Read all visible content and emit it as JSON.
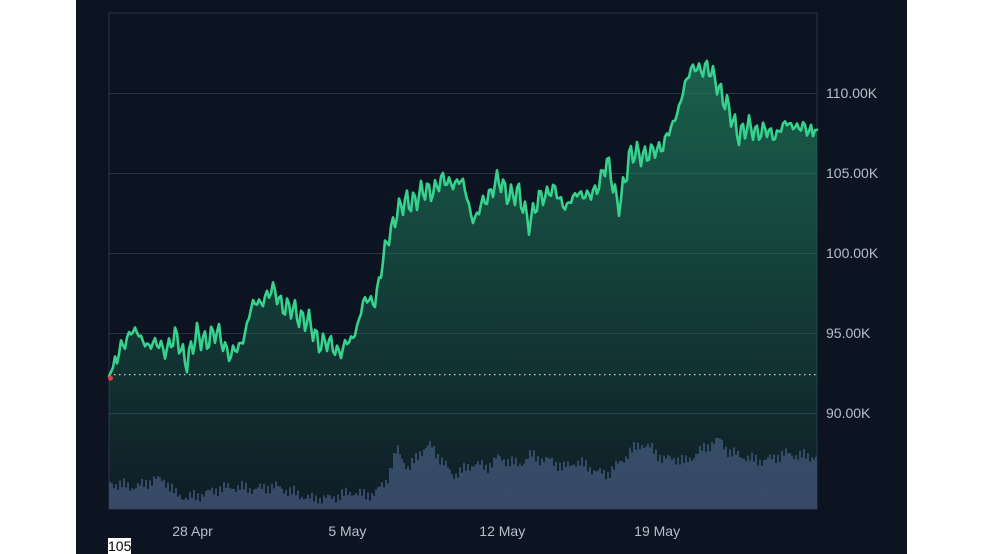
{
  "footer_note": "105",
  "colors": {
    "background": "#0d1421",
    "grid": "#2a3346",
    "price_line": "#36d28e",
    "price_fill_top": "#1e7a5a",
    "volume_fill": "#3a4468",
    "start_marker": "#ea3943",
    "reference_line": "#c7ccd6",
    "tick_label": "#b8bfcc"
  },
  "chart_data": {
    "type": "area",
    "title": "",
    "xlabel": "",
    "ylabel": "",
    "x_ticks": [
      "28 Apr",
      "5 May",
      "12 May",
      "19 May"
    ],
    "y_ticks": [
      "90.00K",
      "95.00K",
      "100.00K",
      "105.00K",
      "110.00K"
    ],
    "y_tick_values": [
      90000,
      95000,
      100000,
      105000,
      110000
    ],
    "ylim": [
      84000,
      115000
    ],
    "xlim": [
      "2025-04-24T00:00",
      "2025-05-26T00:00"
    ],
    "grid": true,
    "reference_line": 92400,
    "series": [
      {
        "type": "area",
        "x": [
          "2025-04-24T00:00",
          "2025-04-24T12:00",
          "2025-04-25T00:00",
          "2025-04-25T12:00",
          "2025-04-26T00:00",
          "2025-04-26T12:00",
          "2025-04-27T00:00",
          "2025-04-27T12:00",
          "2025-04-28T00:00",
          "2025-04-28T12:00",
          "2025-04-29T00:00",
          "2025-04-29T12:00",
          "2025-04-30T00:00",
          "2025-04-30T12:00",
          "2025-05-01T00:00",
          "2025-05-01T12:00",
          "2025-05-02T00:00",
          "2025-05-02T12:00",
          "2025-05-03T00:00",
          "2025-05-03T12:00",
          "2025-05-04T00:00",
          "2025-05-04T12:00",
          "2025-05-05T00:00",
          "2025-05-05T12:00",
          "2025-05-06T00:00",
          "2025-05-06T12:00",
          "2025-05-07T00:00",
          "2025-05-07T12:00",
          "2025-05-08T00:00",
          "2025-05-08T12:00",
          "2025-05-09T00:00",
          "2025-05-09T12:00",
          "2025-05-10T00:00",
          "2025-05-10T12:00",
          "2025-05-11T00:00",
          "2025-05-11T12:00",
          "2025-05-12T00:00",
          "2025-05-12T12:00",
          "2025-05-13T00:00",
          "2025-05-13T12:00",
          "2025-05-14T00:00",
          "2025-05-14T12:00",
          "2025-05-15T00:00",
          "2025-05-15T12:00",
          "2025-05-16T00:00",
          "2025-05-16T12:00",
          "2025-05-17T00:00",
          "2025-05-17T12:00",
          "2025-05-18T00:00",
          "2025-05-18T12:00",
          "2025-05-19T00:00",
          "2025-05-19T12:00",
          "2025-05-20T00:00",
          "2025-05-20T12:00",
          "2025-05-21T00:00",
          "2025-05-21T12:00",
          "2025-05-22T00:00",
          "2025-05-22T12:00",
          "2025-05-23T00:00",
          "2025-05-23T12:00",
          "2025-05-24T00:00",
          "2025-05-24T12:00",
          "2025-05-25T00:00",
          "2025-05-25T12:00",
          "2025-05-26T00:00"
        ],
        "values": [
          92300,
          93800,
          95300,
          94500,
          94300,
          94000,
          94700,
          93300,
          94800,
          94600,
          95000,
          93400,
          94500,
          96700,
          97200,
          97600,
          96500,
          96300,
          95600,
          94500,
          94200,
          93900,
          94600,
          96900,
          97000,
          100200,
          102700,
          103100,
          103600,
          103900,
          104400,
          104500,
          104300,
          102000,
          103300,
          104500,
          103800,
          103600,
          102000,
          103400,
          104100,
          103000,
          103400,
          103800,
          103600,
          106000,
          102700,
          105900,
          106300,
          106100,
          106800,
          107900,
          110500,
          111700,
          111500,
          110700,
          108800,
          107500,
          107800,
          107600,
          107400,
          107900,
          108100,
          107600,
          107700
        ]
      },
      {
        "type": "volume",
        "x": [
          "2025-04-24T00:00",
          "2025-04-24T12:00",
          "2025-04-25T00:00",
          "2025-04-25T12:00",
          "2025-04-26T00:00",
          "2025-04-26T12:00",
          "2025-04-27T00:00",
          "2025-04-27T12:00",
          "2025-04-28T00:00",
          "2025-04-28T12:00",
          "2025-04-29T00:00",
          "2025-04-29T12:00",
          "2025-04-30T00:00",
          "2025-04-30T12:00",
          "2025-05-01T00:00",
          "2025-05-01T12:00",
          "2025-05-02T00:00",
          "2025-05-02T12:00",
          "2025-05-03T00:00",
          "2025-05-03T12:00",
          "2025-05-04T00:00",
          "2025-05-04T12:00",
          "2025-05-05T00:00",
          "2025-05-05T12:00",
          "2025-05-06T00:00",
          "2025-05-06T12:00",
          "2025-05-07T00:00",
          "2025-05-07T12:00",
          "2025-05-08T00:00",
          "2025-05-08T12:00",
          "2025-05-09T00:00",
          "2025-05-09T12:00",
          "2025-05-10T00:00",
          "2025-05-10T12:00",
          "2025-05-11T00:00",
          "2025-05-11T12:00",
          "2025-05-12T00:00",
          "2025-05-12T12:00",
          "2025-05-13T00:00",
          "2025-05-13T12:00",
          "2025-05-14T00:00",
          "2025-05-14T12:00",
          "2025-05-15T00:00",
          "2025-05-15T12:00",
          "2025-05-16T00:00",
          "2025-05-16T12:00",
          "2025-05-17T00:00",
          "2025-05-17T12:00",
          "2025-05-18T00:00",
          "2025-05-18T12:00",
          "2025-05-19T00:00",
          "2025-05-19T12:00",
          "2025-05-20T00:00",
          "2025-05-20T12:00",
          "2025-05-21T00:00",
          "2025-05-21T12:00",
          "2025-05-22T00:00",
          "2025-05-22T12:00",
          "2025-05-23T00:00",
          "2025-05-23T12:00",
          "2025-05-24T00:00",
          "2025-05-24T12:00",
          "2025-05-25T00:00",
          "2025-05-25T12:00",
          "2025-05-26T00:00"
        ],
        "values": [
          0.36,
          0.34,
          0.31,
          0.34,
          0.42,
          0.4,
          0.2,
          0.16,
          0.19,
          0.24,
          0.29,
          0.31,
          0.3,
          0.28,
          0.3,
          0.32,
          0.26,
          0.21,
          0.15,
          0.14,
          0.16,
          0.2,
          0.24,
          0.19,
          0.23,
          0.4,
          0.85,
          0.55,
          0.8,
          0.9,
          0.68,
          0.48,
          0.55,
          0.65,
          0.58,
          0.72,
          0.68,
          0.62,
          0.76,
          0.7,
          0.68,
          0.58,
          0.66,
          0.62,
          0.52,
          0.5,
          0.64,
          0.8,
          0.92,
          0.85,
          0.7,
          0.72,
          0.66,
          0.78,
          0.88,
          1.0,
          0.8,
          0.75,
          0.7,
          0.68,
          0.72,
          0.78,
          0.76,
          0.74,
          0.74
        ]
      }
    ]
  }
}
